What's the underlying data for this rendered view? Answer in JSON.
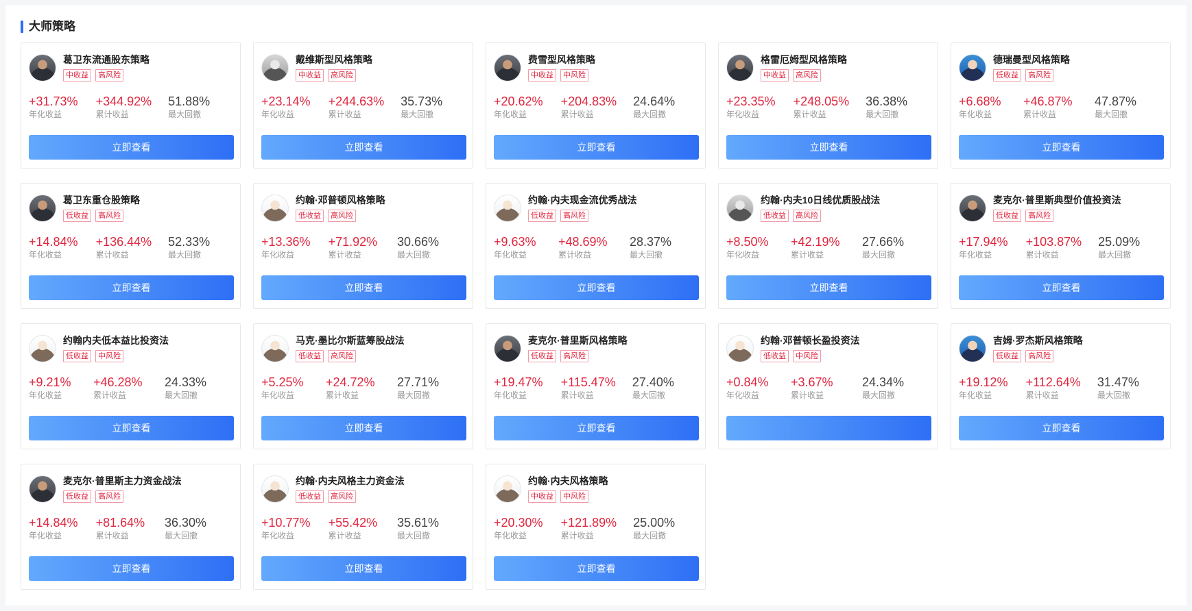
{
  "section": {
    "title": "大师策略"
  },
  "labels": {
    "annual": "年化收益",
    "cumulative": "累计收益",
    "drawdown": "最大回撤"
  },
  "cards": [
    {
      "name": "葛卫东流通股东策略",
      "tags": [
        "中收益",
        "高风险"
      ],
      "annual": "+31.73%",
      "cumulative": "+344.92%",
      "drawdown": "51.88%",
      "button": "立即查看",
      "avatar": "dark"
    },
    {
      "name": "戴维斯型风格策略",
      "tags": [
        "中收益",
        "高风险"
      ],
      "annual": "+23.14%",
      "cumulative": "+244.63%",
      "drawdown": "35.73%",
      "button": "立即查看",
      "avatar": "gray"
    },
    {
      "name": "费雪型风格策略",
      "tags": [
        "中收益",
        "中风险"
      ],
      "annual": "+20.62%",
      "cumulative": "+204.83%",
      "drawdown": "24.64%",
      "button": "立即查看",
      "avatar": "dark"
    },
    {
      "name": "格雷厄姆型风格策略",
      "tags": [
        "中收益",
        "高风险"
      ],
      "annual": "+23.35%",
      "cumulative": "+248.05%",
      "drawdown": "36.38%",
      "button": "立即查看",
      "avatar": "dark"
    },
    {
      "name": "德瑞曼型风格策略",
      "tags": [
        "低收益",
        "高风险"
      ],
      "annual": "+6.68%",
      "cumulative": "+46.87%",
      "drawdown": "47.87%",
      "button": "立即查看",
      "avatar": "blue"
    },
    {
      "name": "葛卫东重仓股策略",
      "tags": [
        "低收益",
        "高风险"
      ],
      "annual": "+14.84%",
      "cumulative": "+136.44%",
      "drawdown": "52.33%",
      "button": "立即查看",
      "avatar": "dark"
    },
    {
      "name": "约翰·邓普顿风格策略",
      "tags": [
        "低收益",
        "高风险"
      ],
      "annual": "+13.36%",
      "cumulative": "+71.92%",
      "drawdown": "30.66%",
      "button": "立即查看",
      "avatar": "light"
    },
    {
      "name": "约翰·内夫现金流优秀战法",
      "tags": [
        "低收益",
        "高风险"
      ],
      "annual": "+9.63%",
      "cumulative": "+48.69%",
      "drawdown": "28.37%",
      "button": "立即查看",
      "avatar": "light"
    },
    {
      "name": "约翰·内夫10日线优质股战法",
      "tags": [
        "低收益",
        "高风险"
      ],
      "annual": "+8.50%",
      "cumulative": "+42.19%",
      "drawdown": "27.66%",
      "button": "立即查看",
      "avatar": "gray"
    },
    {
      "name": "麦克尔·普里斯典型价值投资法",
      "tags": [
        "低收益",
        "高风险"
      ],
      "annual": "+17.94%",
      "cumulative": "+103.87%",
      "drawdown": "25.09%",
      "button": "立即查看",
      "avatar": "dark"
    },
    {
      "name": "约翰内夫低本益比投资法",
      "tags": [
        "低收益",
        "中风险"
      ],
      "annual": "+9.21%",
      "cumulative": "+46.28%",
      "drawdown": "24.33%",
      "button": "立即查看",
      "avatar": "light"
    },
    {
      "name": "马克·墨比尔斯蓝筹股战法",
      "tags": [
        "低收益",
        "高风险"
      ],
      "annual": "+5.25%",
      "cumulative": "+24.72%",
      "drawdown": "27.71%",
      "button": "立即查看",
      "avatar": "light"
    },
    {
      "name": "麦克尔·普里斯风格策略",
      "tags": [
        "低收益",
        "高风险"
      ],
      "annual": "+19.47%",
      "cumulative": "+115.47%",
      "drawdown": "27.40%",
      "button": "立即查看",
      "avatar": "dark"
    },
    {
      "name": "约翰·邓普顿长盈投资法",
      "tags": [
        "低收益",
        "中风险"
      ],
      "annual": "+0.84%",
      "cumulative": "+3.67%",
      "drawdown": "24.34%",
      "button": "",
      "avatar": "light"
    },
    {
      "name": "吉姆·罗杰斯风格策略",
      "tags": [
        "低收益",
        "高风险"
      ],
      "annual": "+19.12%",
      "cumulative": "+112.64%",
      "drawdown": "31.47%",
      "button": "立即查看",
      "avatar": "blue"
    },
    {
      "name": "麦克尔·普里斯主力资金战法",
      "tags": [
        "低收益",
        "高风险"
      ],
      "annual": "+14.84%",
      "cumulative": "+81.64%",
      "drawdown": "36.30%",
      "button": "立即查看",
      "avatar": "dark"
    },
    {
      "name": "约翰·内夫风格主力资金法",
      "tags": [
        "低收益",
        "高风险"
      ],
      "annual": "+10.77%",
      "cumulative": "+55.42%",
      "drawdown": "35.61%",
      "button": "立即查看",
      "avatar": "light"
    },
    {
      "name": "约翰·内夫风格策略",
      "tags": [
        "中收益",
        "中风险"
      ],
      "annual": "+20.30%",
      "cumulative": "+121.89%",
      "drawdown": "25.00%",
      "button": "立即查看",
      "avatar": "light"
    }
  ]
}
